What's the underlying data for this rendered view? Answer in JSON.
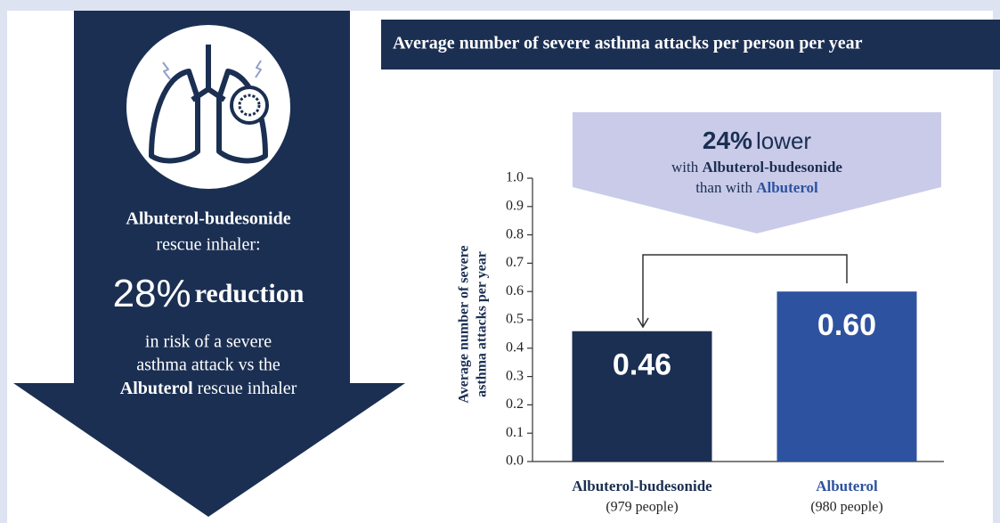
{
  "panel": {
    "drug": "Albuterol-budesonide",
    "subtitle": "rescue inhaler:",
    "stat": "28%",
    "stat_text": "reduction",
    "desc_lines": [
      "in risk of a severe",
      "asthma attack vs the"
    ],
    "desc_drug": "Albuterol",
    "desc_end": "rescue inhaler"
  },
  "chart_data": {
    "type": "bar",
    "title": "Average number of severe asthma attacks per person per year",
    "ylabel": [
      "Average number of severe",
      "asthma attacks per year"
    ],
    "categories": [
      "Albuterol-budesonide",
      "Albuterol"
    ],
    "category_notes": [
      "(979 people)",
      "(980 people)"
    ],
    "values": [
      0.46,
      0.6
    ],
    "value_labels": [
      "0.46",
      "0.60"
    ],
    "colors": [
      "#1b2f52",
      "#2d52a0"
    ],
    "ylim": [
      0,
      1
    ],
    "yticks": [
      {
        "value": 0,
        "label": "0.0"
      },
      0.1,
      0.2,
      0.3,
      0.4,
      0.5,
      0.6,
      0.7,
      0.8,
      0.9,
      {
        "value": 1,
        "label": "1.0"
      }
    ],
    "callout": {
      "stat": "24%",
      "stat_text": "lower",
      "with": "with",
      "than_with": "than with"
    }
  }
}
